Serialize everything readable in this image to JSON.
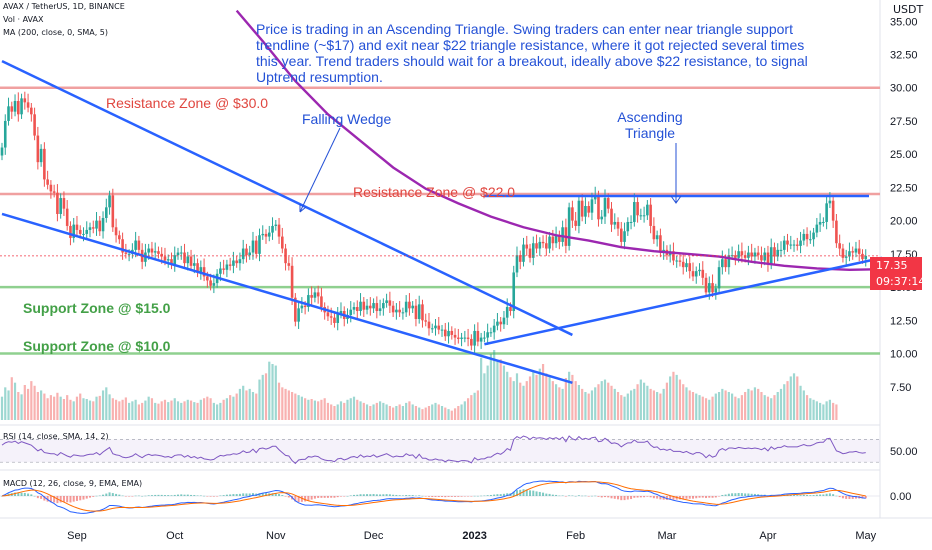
{
  "header": {
    "symbol": "AVAX / TetherUS, 1D, BINANCE",
    "volume_label": "Vol · AVAX",
    "ma_label": "MA (200, close, 0, SMA, 5)"
  },
  "currency": "USDT",
  "price_badge": {
    "price": "17.35",
    "countdown": "09:37:14"
  },
  "annotations": {
    "note": "Price is trading in an Ascending Triangle. Swing traders can enter near triangle support trendline (~$17) and exit near $22 triangle resistance,  where it got rejected several times this year. Trend traders should wait for a breakout, ideally above $22 resistance, to signal Uptrend resumption.",
    "resistance_30": "Resistance Zone @ $30.0",
    "resistance_22": "Resistance Zone @ $22.0",
    "support_15": "Support Zone @ $15.0",
    "support_10": "Support Zone @ $10.0",
    "falling_wedge": "Falling Wedge",
    "ascending_line1": "Ascending",
    "ascending_line2": "Triangle"
  },
  "rsi_label": "RSI (14, close, SMA, 14, 2)",
  "macd_label": "MACD (12, 26, close, 9, EMA, EMA)",
  "colors": {
    "up": "#26a69a",
    "down": "#ef5350",
    "ma": "#9c27b0",
    "trend": "#2962ff",
    "resistance": "#f0a0a0",
    "support": "#8fd08f",
    "annotation": "#2451d6"
  },
  "chart_data": [
    {
      "type": "candlestick",
      "title": "AVAX / TetherUS, 1D, BINANCE",
      "ylabel": "USDT",
      "ylim": [
        5.0,
        36.6
      ],
      "yticks": [
        "35.00",
        "32.50",
        "30.00",
        "27.50",
        "25.00",
        "22.50",
        "20.00",
        "17.50",
        "15.00",
        "12.50",
        "10.00",
        "7.50"
      ],
      "x_tick_labels": [
        "Sep",
        "Oct",
        "Nov",
        "Dec",
        "2023",
        "Feb",
        "Mar",
        "Apr",
        "May"
      ],
      "x_tick_day_index": [
        23,
        53,
        84,
        114,
        145,
        176,
        204,
        235,
        265
      ],
      "closes": [
        25.5,
        27.5,
        28.6,
        28.2,
        29.0,
        28.0,
        29.2,
        28.9,
        28.5,
        28.0,
        26.4,
        24.4,
        25.4,
        23.1,
        22.7,
        22.2,
        22.1,
        20.5,
        21.7,
        20.9,
        19.6,
        18.7,
        19.7,
        19.3,
        19.0,
        19.0,
        19.3,
        19.5,
        19.4,
        20.0,
        19.2,
        20.2,
        21.0,
        21.9,
        19.5,
        18.9,
        18.6,
        17.6,
        17.5,
        17.5,
        17.8,
        18.5,
        17.8,
        16.9,
        17.6,
        17.9,
        17.6,
        17.7,
        17.5,
        17.3,
        17.0,
        17.1,
        16.7,
        17.4,
        17.6,
        17.6,
        16.8,
        17.3,
        16.6,
        16.8,
        16.1,
        16.5,
        15.8,
        15.5,
        15.1,
        15.3,
        16.0,
        16.4,
        16.3,
        16.7,
        16.6,
        17.0,
        16.8,
        17.1,
        17.9,
        17.4,
        17.6,
        18.5,
        17.5,
        18.9,
        19.0,
        18.8,
        19.1,
        19.6,
        19.7,
        18.8,
        17.9,
        16.8,
        16.6,
        14.2,
        12.4,
        13.4,
        13.6,
        13.5,
        14.4,
        14.2,
        14.6,
        14.3,
        13.5,
        13.1,
        12.8,
        12.7,
        12.3,
        13.0,
        13.2,
        12.6,
        12.9,
        13.3,
        13.5,
        13.2,
        13.9,
        13.3,
        13.6,
        13.4,
        13.8,
        13.2,
        13.4,
        13.8,
        14.0,
        13.6,
        13.1,
        13.3,
        13.1,
        13.1,
        13.9,
        13.4,
        13.6,
        12.6,
        13.7,
        12.5,
        12.4,
        11.9,
        11.9,
        12.1,
        11.8,
        11.8,
        11.3,
        11.7,
        11.4,
        11.2,
        11.1,
        11.2,
        11.2,
        11.1,
        10.6,
        11.7,
        10.9,
        11.2,
        11.2,
        11.6,
        11.6,
        12.1,
        12.4,
        12.2,
        12.7,
        13.5,
        13.2,
        16.1,
        17.4,
        16.9,
        18.2,
        17.9,
        17.2,
        18.3,
        17.9,
        18.4,
        18.3,
        17.9,
        18.8,
        18.3,
        18.9,
        18.4,
        19.5,
        18.1,
        21.0,
        20.0,
        19.6,
        21.5,
        20.3,
        21.1,
        20.6,
        21.6,
        21.9,
        20.1,
        20.3,
        21.7,
        20.9,
        19.7,
        19.9,
        19.4,
        18.4,
        19.2,
        19.9,
        19.9,
        21.4,
        20.4,
        20.4,
        20.4,
        21.2,
        19.6,
        18.6,
        18.9,
        17.6,
        17.8,
        17.4,
        17.7,
        17.0,
        17.0,
        16.9,
        16.5,
        16.8,
        16.2,
        15.8,
        16.2,
        16.3,
        15.7,
        14.6,
        15.3,
        14.6,
        14.9,
        16.5,
        17.1,
        16.5,
        17.4,
        17.4,
        17.2,
        17.7,
        17.4,
        17.2,
        17.6,
        17.3,
        17.6,
        17.4,
        17.0,
        17.6,
        16.7,
        18.0,
        17.3,
        17.8,
        17.8,
        18.5,
        18.2,
        18.2,
        18.2,
        18.1,
        18.5,
        19.0,
        18.6,
        18.6,
        19.1,
        19.7,
        19.9,
        19.9,
        21.3,
        21.5,
        20.0,
        18.3,
        17.9,
        17.2,
        17.3,
        17.7,
        17.6,
        17.9,
        17.5,
        17.1,
        17.35
      ],
      "ma200": [
        [
          0,
          null
        ],
        [
          60,
          null
        ],
        [
          72,
          35.8
        ],
        [
          80,
          33.5
        ],
        [
          90,
          30.5
        ],
        [
          100,
          28.0
        ],
        [
          110,
          26.0
        ],
        [
          120,
          24.0
        ],
        [
          130,
          22.4
        ],
        [
          140,
          21.3
        ],
        [
          150,
          20.3
        ],
        [
          160,
          19.5
        ],
        [
          170,
          18.9
        ],
        [
          180,
          18.5
        ],
        [
          190,
          18.0
        ],
        [
          200,
          17.7
        ],
        [
          210,
          17.5
        ],
        [
          220,
          17.3
        ],
        [
          230,
          16.9
        ],
        [
          240,
          16.6
        ],
        [
          250,
          16.4
        ],
        [
          260,
          16.3
        ],
        [
          270,
          16.35
        ]
      ],
      "levels": [
        {
          "name": "resistance",
          "value": 30.0
        },
        {
          "name": "resistance",
          "value": 22.0
        },
        {
          "name": "support",
          "value": 15.0
        },
        {
          "name": "support",
          "value": 10.0
        }
      ],
      "trendlines": [
        {
          "name": "wedge-upper",
          "from": [
            0,
            32.0
          ],
          "to": [
            175,
            11.4
          ]
        },
        {
          "name": "wedge-lower",
          "from": [
            0,
            20.5
          ],
          "to": [
            175,
            7.8
          ]
        },
        {
          "name": "triangle-support",
          "from": [
            148,
            10.7
          ],
          "to": [
            270,
            17.2
          ]
        },
        {
          "name": "triangle-resistance",
          "from": [
            148,
            21.85
          ],
          "to": [
            266,
            21.85
          ]
        }
      ]
    },
    {
      "type": "bar",
      "title": "Vol · AVAX",
      "values": [
        30,
        42,
        38,
        55,
        48,
        36,
        33,
        45,
        40,
        50,
        44,
        36,
        38,
        34,
        28,
        32,
        30,
        35,
        30,
        27,
        32,
        26,
        24,
        30,
        34,
        28,
        27,
        25,
        24,
        30,
        31,
        38,
        42,
        33,
        28,
        26,
        24,
        26,
        29,
        22,
        24,
        26,
        20,
        22,
        25,
        30,
        28,
        22,
        21,
        24,
        26,
        23,
        25,
        28,
        24,
        22,
        24,
        26,
        25,
        23,
        22,
        26,
        28,
        30,
        28,
        22,
        20,
        22,
        26,
        28,
        32,
        30,
        34,
        40,
        44,
        38,
        40,
        36,
        34,
        52,
        58,
        60,
        75,
        72,
        70,
        48,
        42,
        40,
        38,
        36,
        34,
        32,
        30,
        28,
        26,
        27,
        25,
        24,
        26,
        28,
        22,
        20,
        18,
        20,
        24,
        22,
        26,
        28,
        30,
        26,
        24,
        22,
        20,
        18,
        20,
        22,
        24,
        22,
        20,
        18,
        16,
        18,
        20,
        18,
        22,
        24,
        20,
        18,
        16,
        14,
        16,
        18,
        20,
        22,
        20,
        18,
        16,
        14,
        12,
        15,
        18,
        20,
        24,
        28,
        32,
        35,
        38,
        80,
        60,
        70,
        85,
        90,
        75,
        78,
        70,
        62,
        55,
        50,
        60,
        48,
        44,
        50,
        56,
        62,
        58,
        66,
        72,
        60,
        55,
        50,
        46,
        42,
        40,
        54,
        62,
        58,
        50,
        45,
        40,
        36,
        34,
        38,
        42,
        46,
        50,
        52,
        48,
        44,
        40,
        36,
        32,
        30,
        34,
        38,
        40,
        46,
        52,
        48,
        44,
        40,
        38,
        36,
        34,
        40,
        48,
        56,
        62,
        58,
        52,
        46,
        42,
        38,
        36,
        34,
        32,
        30,
        28,
        26,
        30,
        34,
        36,
        40,
        38,
        36,
        34,
        30,
        28,
        32,
        36,
        40,
        38,
        42,
        40,
        36,
        32,
        30,
        28,
        32,
        36,
        40,
        46,
        50,
        56,
        60,
        56,
        44,
        38,
        32,
        28,
        26,
        24,
        22,
        20,
        24,
        26,
        22,
        20
      ]
    },
    {
      "type": "line",
      "title": "RSI (14, close, SMA, 14, 2)",
      "ytick": "50.00",
      "values": [
        60,
        64,
        66,
        65,
        67,
        63,
        66,
        64,
        62,
        60,
        55,
        50,
        53,
        47,
        46,
        45,
        45,
        42,
        47,
        44,
        41,
        39,
        43,
        42,
        41,
        41,
        43,
        44,
        44,
        47,
        43,
        48,
        52,
        56,
        45,
        43,
        42,
        39,
        38,
        39,
        41,
        45,
        41,
        38,
        42,
        44,
        42,
        43,
        42,
        41,
        39,
        40,
        38,
        42,
        43,
        43,
        39,
        42,
        38,
        40,
        37,
        39,
        36,
        35,
        34,
        35,
        39,
        42,
        41,
        43,
        43,
        45,
        44,
        46,
        50,
        47,
        48,
        53,
        47,
        54,
        55,
        53,
        55,
        58,
        58,
        52,
        47,
        42,
        41,
        33,
        28,
        34,
        35,
        35,
        40,
        39,
        41,
        40,
        36,
        34,
        33,
        33,
        31,
        36,
        37,
        34,
        36,
        39,
        40,
        38,
        43,
        39,
        41,
        40,
        43,
        39,
        41,
        43,
        45,
        42,
        39,
        41,
        40,
        40,
        45,
        42,
        43,
        37,
        44,
        37,
        37,
        34,
        34,
        36,
        34,
        34,
        31,
        34,
        33,
        32,
        31,
        33,
        33,
        32,
        29,
        38,
        34,
        36,
        36,
        39,
        39,
        43,
        46,
        44,
        48,
        54,
        51,
        70,
        75,
        72,
        76,
        74,
        70,
        74,
        72,
        73,
        72,
        70,
        73,
        71,
        73,
        70,
        74,
        66,
        76,
        71,
        69,
        75,
        70,
        72,
        70,
        73,
        74,
        66,
        67,
        72,
        68,
        63,
        64,
        62,
        57,
        61,
        64,
        64,
        69,
        65,
        65,
        65,
        67,
        60,
        56,
        57,
        52,
        53,
        51,
        53,
        49,
        49,
        49,
        47,
        49,
        46,
        44,
        47,
        47,
        44,
        38,
        43,
        39,
        41,
        51,
        54,
        51,
        55,
        55,
        54,
        56,
        55,
        54,
        55,
        54,
        55,
        54,
        52,
        55,
        50,
        57,
        53,
        56,
        56,
        59,
        57,
        57,
        57,
        57,
        59,
        61,
        59,
        59,
        61,
        64,
        65,
        65,
        71,
        72,
        61,
        50,
        48,
        45,
        46,
        48,
        48,
        49,
        47,
        46,
        47
      ]
    },
    {
      "type": "line",
      "title": "MACD (12, 26, close, 9, EMA, EMA)",
      "ytick": "0.00",
      "series": [
        {
          "name": "MACD",
          "color": "#2962ff"
        },
        {
          "name": "Signal",
          "color": "#ff6d00"
        },
        {
          "name": "Histogram",
          "color": "#26a69a"
        }
      ]
    }
  ]
}
